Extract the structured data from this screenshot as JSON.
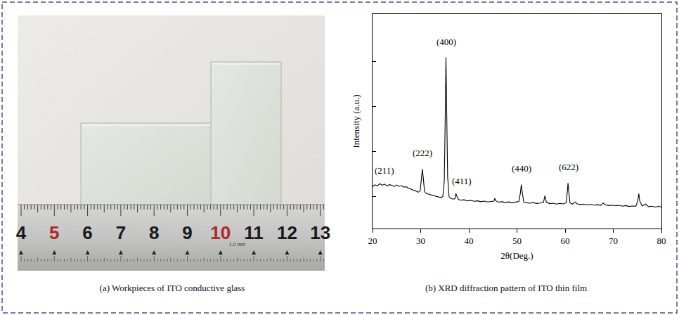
{
  "photo": {
    "caption": "(a) Workpieces of ITO conductive glass",
    "ruler_labels": [
      4,
      5,
      6,
      7,
      8,
      9,
      10,
      11,
      12,
      13
    ],
    "ruler_highlight": [
      5,
      10
    ],
    "ruler_note": "1.0 mm"
  },
  "chart_data": {
    "type": "line",
    "caption": "(b) XRD diffraction pattern of ITO thin film",
    "x_label": "2θ(Deg.)",
    "y_label": "Intensity (a.u.)",
    "color": "#000000",
    "x": [
      20,
      20.5,
      21,
      21.5,
      22,
      22.5,
      23,
      23.5,
      24,
      24.5,
      25,
      25.5,
      26,
      26.5,
      27,
      27.5,
      28,
      28.5,
      29,
      29.5,
      29.9,
      30.15,
      30.35,
      30.55,
      30.8,
      31.2,
      31.7,
      32.2,
      32.7,
      33.2,
      33.7,
      34.2,
      34.6,
      34.9,
      35.1,
      35.25,
      35.4,
      35.6,
      35.9,
      36.3,
      36.8,
      37.1,
      37.3,
      37.5,
      37.8,
      38.3,
      39,
      39.7,
      40.4,
      41.1,
      41.8,
      42.5,
      43.2,
      43.9,
      44.6,
      45.2,
      45.4,
      45.6,
      46.2,
      46.9,
      47.6,
      48.3,
      49,
      49.7,
      50.4,
      50.7,
      50.9,
      51.1,
      51.4,
      52,
      52.7,
      53.4,
      54.1,
      54.8,
      55.5,
      55.8,
      56.1,
      56.8,
      57.5,
      58.2,
      58.9,
      59.6,
      60.2,
      60.45,
      60.6,
      60.75,
      61,
      61.5,
      62.1,
      62.5,
      63.2,
      63.9,
      64.6,
      65.3,
      66,
      66.7,
      67.4,
      67.9,
      68.4,
      69.1,
      69.8,
      70.5,
      71.2,
      71.9,
      72.6,
      73.3,
      74,
      74.7,
      75.1,
      75.3,
      75.5,
      76,
      76.7,
      77.3,
      78,
      78.7,
      79.4,
      80
    ],
    "values": [
      19.6,
      20.4,
      19.9,
      20.9,
      20.2,
      20.7,
      19.8,
      20.5,
      20.1,
      19.6,
      20.3,
      19.7,
      20.0,
      19.3,
      19.5,
      18.7,
      18.4,
      17.8,
      17.5,
      16.9,
      17.6,
      22.5,
      27.7,
      23.4,
      17.2,
      16.3,
      16.0,
      15.5,
      15.3,
      14.9,
      14.7,
      14.4,
      14.9,
      22,
      52,
      79.8,
      55,
      24,
      14.8,
      14.0,
      13.7,
      13.9,
      16.3,
      15.0,
      13.6,
      13.2,
      13.4,
      12.9,
      13.1,
      12.7,
      12.9,
      12.5,
      12.8,
      12.4,
      12.6,
      12.8,
      14.1,
      12.9,
      12.3,
      12.5,
      12.1,
      12.4,
      12.0,
      12.3,
      12.6,
      16.5,
      20.5,
      16.8,
      12.4,
      12.0,
      11.8,
      12.1,
      11.7,
      11.9,
      12.2,
      15.3,
      12.3,
      11.6,
      11.8,
      11.4,
      11.7,
      11.5,
      12.0,
      17.0,
      21.2,
      17.2,
      12.1,
      11.3,
      12.4,
      11.5,
      11.2,
      11.4,
      11.0,
      11.3,
      10.9,
      11.1,
      10.8,
      11.9,
      11.0,
      10.7,
      10.9,
      10.6,
      10.8,
      10.4,
      10.7,
      10.3,
      10.5,
      10.4,
      13.0,
      16.3,
      12.8,
      10.5,
      11.4,
      10.2,
      10.4,
      10.0,
      10.3,
      10.1
    ],
    "annotations": [
      {
        "text": "(211)",
        "x": 22.5,
        "y": 24
      },
      {
        "text": "(222)",
        "x": 30.4,
        "y": 32
      },
      {
        "text": "(400)",
        "x": 35.3,
        "y": 84
      },
      {
        "text": "(411)",
        "x": 38.6,
        "y": 19
      },
      {
        "text": "(440)",
        "x": 51,
        "y": 25
      },
      {
        "text": "(622)",
        "x": 60.7,
        "y": 25.5
      }
    ],
    "xlim": [
      20,
      80
    ],
    "xticks": [
      20,
      30,
      40,
      50,
      60,
      70,
      80
    ],
    "ylim": [
      0,
      100
    ],
    "yticks": [
      15,
      36,
      57,
      78
    ],
    "tick_labels": "x",
    "grid": false
  }
}
